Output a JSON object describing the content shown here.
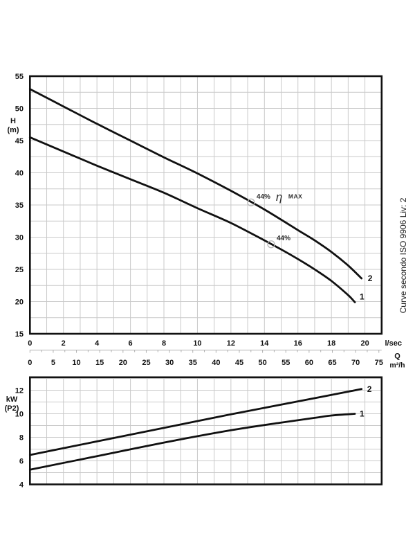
{
  "side_note": "Curve secondo ISO 9906 Liv: 2",
  "colors": {
    "curve": "#111111",
    "border": "#111111",
    "grid": "#c9c9c9",
    "ruler": "#b0b0b0",
    "text": "#111111",
    "annotation_text": "#2b2b2b",
    "efficiency_circle": "#b5b5b5",
    "background": "#ffffff"
  },
  "x_axis": {
    "lsec": {
      "ticks": [
        0,
        2,
        4,
        6,
        8,
        10,
        12,
        14,
        16,
        18,
        20
      ],
      "unit": "l/sec",
      "max": 21
    },
    "m3h": {
      "ticks": [
        0,
        5,
        10,
        15,
        20,
        25,
        30,
        35,
        40,
        45,
        50,
        55,
        60,
        65,
        70,
        75
      ],
      "unit": "m³/h",
      "symbol": "Q",
      "per_lsec": 3.6
    }
  },
  "chart_data": [
    {
      "id": "head_capacity",
      "type": "line",
      "title": "",
      "xlabel": "Q (l/sec | m³/h)",
      "ylabel": "H (m)",
      "ylabel_lines": [
        "H",
        "(m)"
      ],
      "ylim": [
        15,
        55
      ],
      "y_ticks": [
        55,
        50,
        45,
        40,
        35,
        30,
        25,
        20,
        15
      ],
      "y_grid_step": 2.5,
      "series": [
        {
          "name": "2",
          "points": [
            [
              0,
              53
            ],
            [
              2,
              50.3
            ],
            [
              4,
              47.6
            ],
            [
              6,
              45.0
            ],
            [
              8,
              42.4
            ],
            [
              10,
              39.9
            ],
            [
              12,
              37.2
            ],
            [
              14,
              34.3
            ],
            [
              16,
              31.1
            ],
            [
              17,
              29.5
            ],
            [
              18,
              27.7
            ],
            [
              19,
              25.6
            ],
            [
              19.8,
              23.6
            ]
          ]
        },
        {
          "name": "1",
          "points": [
            [
              0,
              45.5
            ],
            [
              2,
              43.3
            ],
            [
              4,
              41.1
            ],
            [
              6,
              39.0
            ],
            [
              8,
              36.9
            ],
            [
              10,
              34.5
            ],
            [
              12,
              32.2
            ],
            [
              14,
              29.5
            ],
            [
              15,
              28.1
            ],
            [
              16,
              26.6
            ],
            [
              17,
              25.0
            ],
            [
              18,
              23.2
            ],
            [
              19,
              21.0
            ],
            [
              19.4,
              19.9
            ]
          ]
        }
      ],
      "efficiency_points": [
        {
          "curve": "2",
          "q": 13.2,
          "value": 35.4,
          "pct": "44%",
          "eta": "η",
          "max": "MAX"
        },
        {
          "curve": "1",
          "q": 14.4,
          "value": 28.9,
          "pct": "44%",
          "eta": "",
          "max": ""
        }
      ]
    },
    {
      "id": "power_p2",
      "type": "line",
      "title": "",
      "xlabel": "Q (l/sec | m³/h)",
      "ylabel": "kW (P2)",
      "ylabel_lines": [
        "kW",
        "(P2)"
      ],
      "ylim": [
        4,
        13.1
      ],
      "y_ticks": [
        12,
        10,
        8,
        6,
        4
      ],
      "y_grid_step": 1,
      "series": [
        {
          "name": "2",
          "points": [
            [
              0,
              6.5
            ],
            [
              4,
              7.65
            ],
            [
              8,
              8.8
            ],
            [
              12,
              9.95
            ],
            [
              16,
              11.05
            ],
            [
              19.8,
              12.1
            ]
          ]
        },
        {
          "name": "1",
          "points": [
            [
              0,
              5.25
            ],
            [
              4,
              6.4
            ],
            [
              8,
              7.55
            ],
            [
              12,
              8.6
            ],
            [
              15,
              9.25
            ],
            [
              17,
              9.65
            ],
            [
              18,
              9.85
            ],
            [
              19.4,
              10.0
            ]
          ]
        }
      ]
    }
  ]
}
